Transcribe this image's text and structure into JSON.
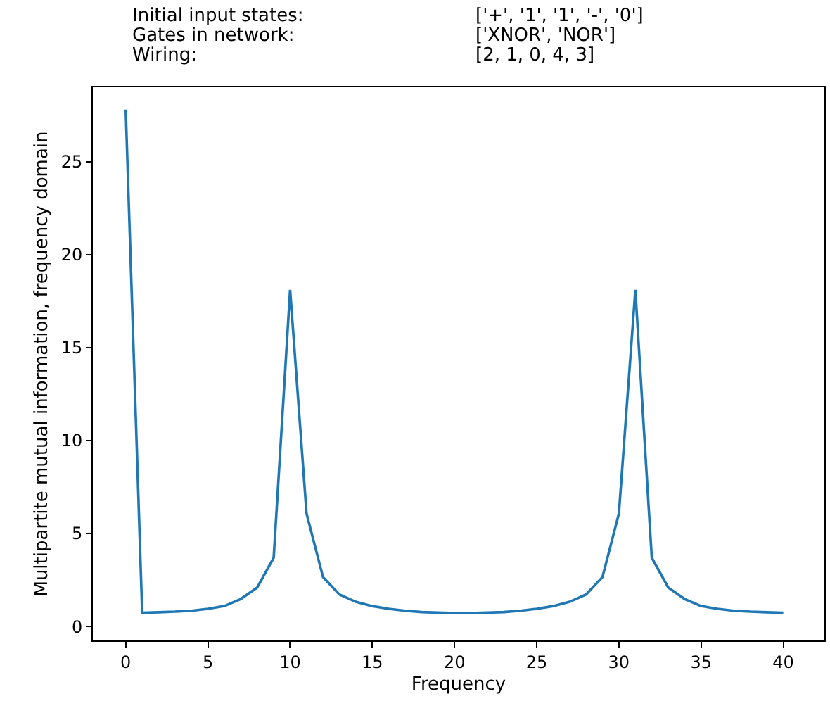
{
  "chart_data": {
    "type": "line",
    "xlabel": "Frequency",
    "ylabel": "Multipartite mutual information, frequency domain",
    "annotations": [
      "Initial input states:",
      "['+', '1', '1', '-', '0']",
      "Gates in network:",
      "['XNOR', 'NOR']",
      "Wiring:",
      "[2, 1, 0, 4, 3]"
    ],
    "x": [
      0,
      1,
      2,
      3,
      4,
      5,
      6,
      7,
      8,
      9,
      10,
      11,
      12,
      13,
      14,
      15,
      16,
      17,
      18,
      19,
      20,
      21,
      22,
      23,
      24,
      25,
      26,
      27,
      28,
      29,
      30,
      31,
      32,
      33,
      34,
      35,
      36,
      37,
      38,
      39,
      40
    ],
    "series": [
      {
        "color": "#1f77b4",
        "values": [
          27.8,
          0.74,
          0.77,
          0.8,
          0.85,
          0.95,
          1.1,
          1.48,
          2.1,
          3.7,
          18.1,
          6.07,
          2.66,
          1.72,
          1.33,
          1.1,
          0.95,
          0.85,
          0.78,
          0.75,
          0.72,
          0.72,
          0.75,
          0.78,
          0.85,
          0.95,
          1.1,
          1.33,
          1.72,
          2.66,
          6.07,
          18.1,
          3.7,
          2.1,
          1.48,
          1.1,
          0.95,
          0.85,
          0.8,
          0.77,
          0.74
        ]
      }
    ],
    "xlim": [
      -2,
      42.5
    ],
    "ylim": [
      -0.75,
      29
    ],
    "xticks": [
      0,
      5,
      10,
      15,
      20,
      25,
      30,
      35,
      40
    ],
    "yticks": [
      0,
      5,
      10,
      15,
      20,
      25
    ],
    "marker": "none",
    "line_style": "solid"
  }
}
